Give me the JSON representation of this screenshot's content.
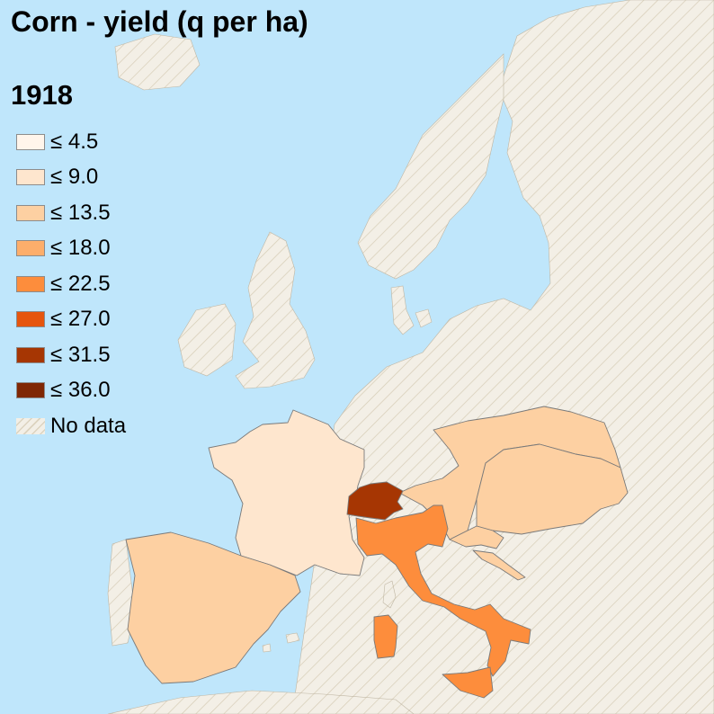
{
  "title": "Corn - yield (q per ha)",
  "year": "1918",
  "colors": {
    "sea": "#bfe6fb",
    "no_data_fill": "#f3efe6",
    "no_data_hatch": "#d6ccb6",
    "border": "#7a7a7a"
  },
  "legend": {
    "items": [
      {
        "label": "≤ 4.5",
        "color": "#fff5eb"
      },
      {
        "label": "≤ 9.0",
        "color": "#fee6ce"
      },
      {
        "label": "≤ 13.5",
        "color": "#fdd0a2"
      },
      {
        "label": "≤ 18.0",
        "color": "#fdae6b"
      },
      {
        "label": "≤ 22.5",
        "color": "#fd8d3c"
      },
      {
        "label": "≤ 27.0",
        "color": "#e6550d"
      },
      {
        "label": "≤ 31.5",
        "color": "#a63603"
      },
      {
        "label": "≤ 36.0",
        "color": "#7f2704"
      }
    ],
    "no_data_label": "No data"
  },
  "regions": [
    {
      "region": "France",
      "class": "≤ 9.0",
      "color": "#fee6ce"
    },
    {
      "region": "Spain",
      "class": "≤ 13.5",
      "color": "#fdd0a2"
    },
    {
      "region": "Austria",
      "class": "≤ 13.5",
      "color": "#fdd0a2"
    },
    {
      "region": "Hungary",
      "class": "≤ 13.5",
      "color": "#fdd0a2"
    },
    {
      "region": "Croatia",
      "class": "≤ 13.5",
      "color": "#fdd0a2"
    },
    {
      "region": "Dalmatia",
      "class": "≤ 13.5",
      "color": "#fdd0a2"
    },
    {
      "region": "Italy",
      "class": "≤ 22.5",
      "color": "#fd8d3c"
    },
    {
      "region": "Switzerland",
      "class": "≤ 31.5",
      "color": "#a63603"
    }
  ]
}
